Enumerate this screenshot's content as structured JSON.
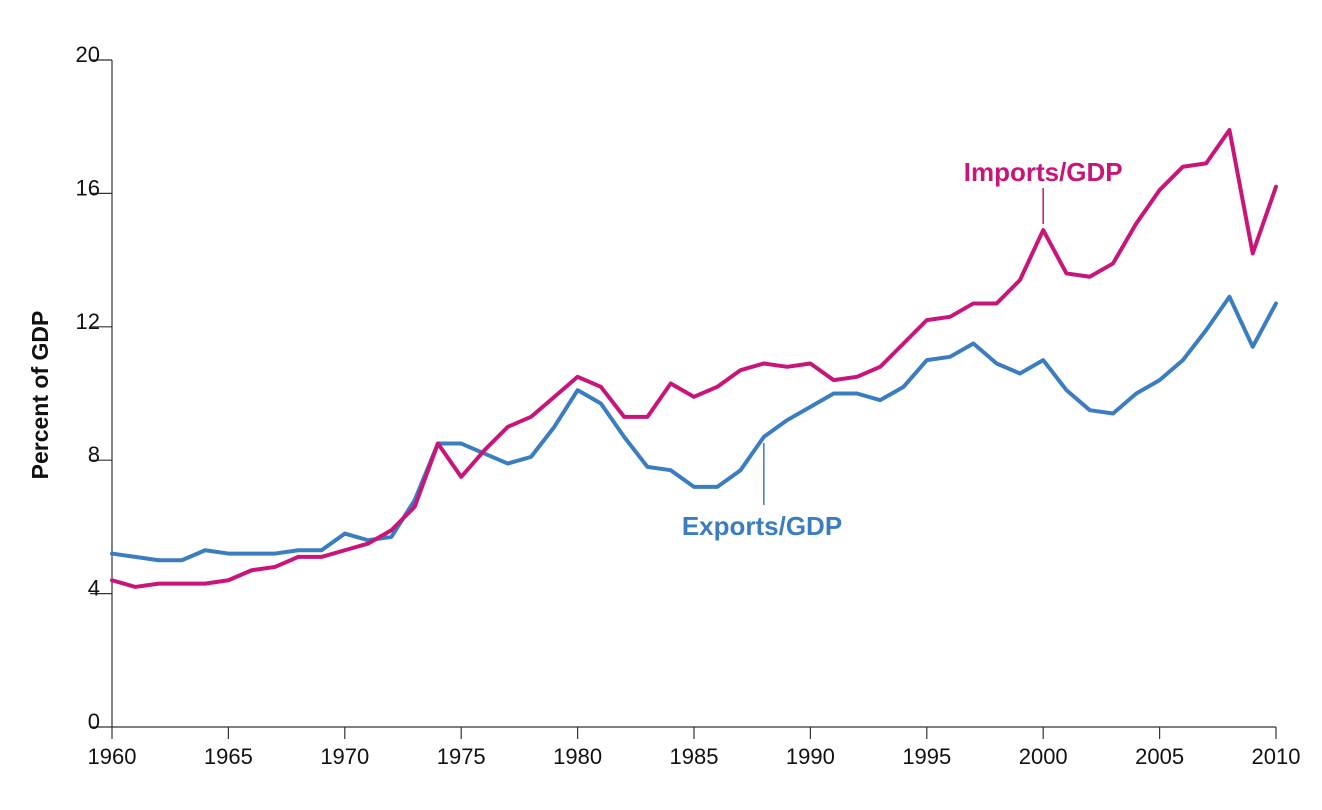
{
  "chart_data": {
    "type": "line",
    "title": "",
    "xlabel": "",
    "ylabel": "Percent of GDP",
    "xlim": [
      1960,
      2010
    ],
    "ylim": [
      0,
      20
    ],
    "xticks": [
      "1960",
      "1965",
      "1970",
      "1975",
      "1980",
      "1985",
      "1990",
      "1995",
      "2000",
      "2005",
      "2010"
    ],
    "yticks": [
      "0",
      "4",
      "8",
      "12",
      "16",
      "20"
    ],
    "grid": false,
    "x": [
      1960,
      1961,
      1962,
      1963,
      1964,
      1965,
      1966,
      1967,
      1968,
      1969,
      1970,
      1971,
      1972,
      1973,
      1974,
      1975,
      1976,
      1977,
      1978,
      1979,
      1980,
      1981,
      1982,
      1983,
      1984,
      1985,
      1986,
      1987,
      1988,
      1989,
      1990,
      1991,
      1992,
      1993,
      1994,
      1995,
      1996,
      1997,
      1998,
      1999,
      2000,
      2001,
      2002,
      2003,
      2004,
      2005,
      2006,
      2007,
      2008,
      2009,
      2010
    ],
    "series": [
      {
        "name": "Imports/GDP",
        "color": "#c8157a",
        "label_anchor_x": 2000,
        "values": [
          4.4,
          4.2,
          4.3,
          4.3,
          4.3,
          4.4,
          4.7,
          4.8,
          5.1,
          5.1,
          5.3,
          5.5,
          5.9,
          6.6,
          8.5,
          7.5,
          8.3,
          9.0,
          9.3,
          9.9,
          10.5,
          10.2,
          9.3,
          9.3,
          10.3,
          9.9,
          10.2,
          10.7,
          10.9,
          10.8,
          10.9,
          10.4,
          10.5,
          10.8,
          11.5,
          12.2,
          12.3,
          12.7,
          12.7,
          13.4,
          14.9,
          13.6,
          13.5,
          13.9,
          15.1,
          16.1,
          16.8,
          16.9,
          17.9,
          14.2,
          16.2
        ]
      },
      {
        "name": "Exports/GDP",
        "color": "#3a7dc0",
        "label_anchor_x": 1988,
        "values": [
          5.2,
          5.1,
          5.0,
          5.0,
          5.3,
          5.2,
          5.2,
          5.2,
          5.3,
          5.3,
          5.8,
          5.6,
          5.7,
          6.8,
          8.5,
          8.5,
          8.2,
          7.9,
          8.1,
          9.0,
          10.1,
          9.7,
          8.7,
          7.8,
          7.7,
          7.2,
          7.2,
          7.7,
          8.7,
          9.2,
          9.6,
          10.0,
          10.0,
          9.8,
          10.2,
          11.0,
          11.1,
          11.5,
          10.9,
          10.6,
          11.0,
          10.1,
          9.5,
          9.4,
          10.0,
          10.4,
          11.0,
          11.9,
          12.9,
          11.4,
          12.7
        ]
      }
    ]
  }
}
